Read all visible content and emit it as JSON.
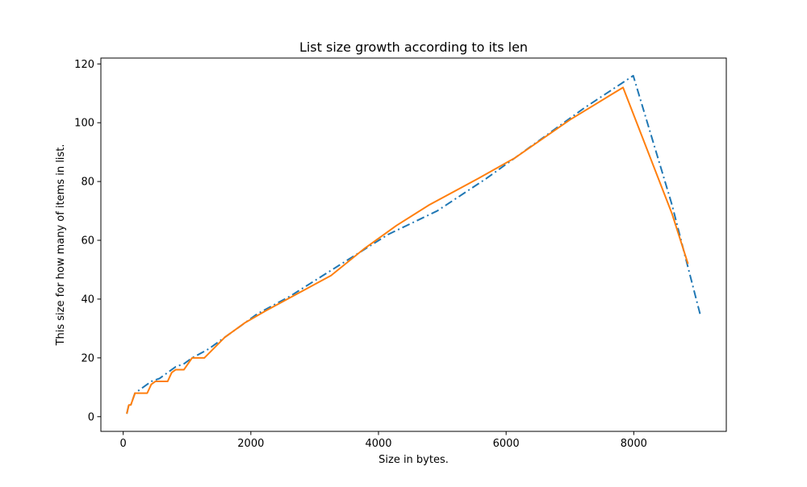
{
  "chart_data": {
    "type": "line",
    "title": "List size growth according to its len",
    "xlabel": "Size in bytes.",
    "ylabel": "This size for how many of items in list.",
    "xlim": [
      -350,
      9450
    ],
    "ylim": [
      -5,
      122
    ],
    "xticks": [
      0,
      2000,
      4000,
      6000,
      8000
    ],
    "yticks": [
      0,
      20,
      40,
      60,
      80,
      100,
      120
    ],
    "grid": false,
    "legend": "none",
    "series": [
      {
        "color": "#1f77b4",
        "style": "dashdot",
        "points": [
          [
            56,
            1
          ],
          [
            88,
            4
          ],
          [
            120,
            4
          ],
          [
            184,
            8
          ],
          [
            248,
            9
          ],
          [
            312,
            10
          ],
          [
            376,
            11
          ],
          [
            440,
            12
          ],
          [
            568,
            13
          ],
          [
            696,
            15
          ],
          [
            824,
            17
          ],
          [
            952,
            18
          ],
          [
            1080,
            20
          ],
          [
            1336,
            23
          ],
          [
            1592,
            27
          ],
          [
            1848,
            31
          ],
          [
            2104,
            35
          ],
          [
            2616,
            41
          ],
          [
            3128,
            48
          ],
          [
            3640,
            55
          ],
          [
            4152,
            62
          ],
          [
            4920,
            70
          ],
          [
            5688,
            81
          ],
          [
            6456,
            93
          ],
          [
            7224,
            105
          ],
          [
            7992,
            116
          ],
          [
            8600,
            72
          ],
          [
            8800,
            55
          ],
          [
            9050,
            34
          ]
        ]
      },
      {
        "color": "#ff7f0e",
        "style": "solid",
        "points": [
          [
            56,
            1
          ],
          [
            88,
            4
          ],
          [
            120,
            4
          ],
          [
            184,
            8
          ],
          [
            248,
            8
          ],
          [
            376,
            8
          ],
          [
            440,
            11
          ],
          [
            504,
            12
          ],
          [
            568,
            12
          ],
          [
            696,
            12
          ],
          [
            760,
            15
          ],
          [
            824,
            16
          ],
          [
            952,
            16
          ],
          [
            1080,
            20
          ],
          [
            1208,
            20
          ],
          [
            1272,
            20
          ],
          [
            1592,
            27
          ],
          [
            1912,
            32
          ],
          [
            2232,
            36
          ],
          [
            2744,
            42
          ],
          [
            3256,
            48
          ],
          [
            3768,
            57
          ],
          [
            4280,
            65
          ],
          [
            4792,
            72
          ],
          [
            5560,
            81
          ],
          [
            6136,
            88
          ],
          [
            7000,
            101
          ],
          [
            7832,
            112
          ],
          [
            8600,
            69
          ],
          [
            8850,
            52
          ]
        ]
      }
    ]
  }
}
